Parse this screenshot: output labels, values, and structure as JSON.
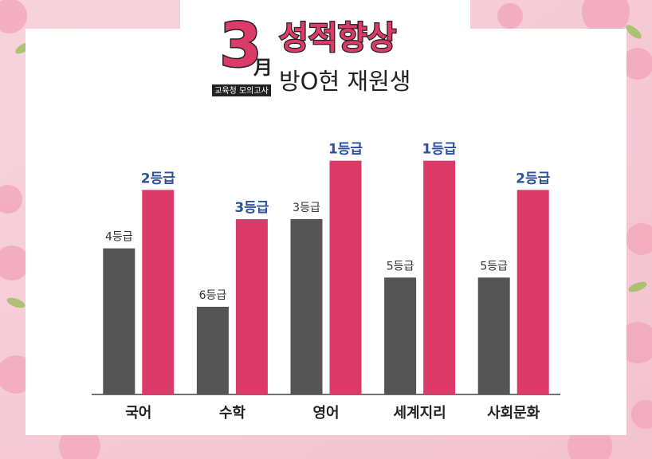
{
  "chart_data": {
    "type": "bar",
    "badge": {
      "number": "3",
      "month": "月",
      "caption": "교육청 모의고사"
    },
    "title": "성적향상",
    "subtitle": "방O현 재원생",
    "categories": [
      "국어",
      "수학",
      "영어",
      "세계지리",
      "사회문화"
    ],
    "ylim": [
      9,
      0
    ],
    "series": [
      {
        "color": "#555555",
        "values": [
          4,
          6,
          3,
          5,
          5
        ],
        "value_labels": [
          "4등급",
          "6등급",
          "3등급",
          "5등급",
          "5등급"
        ],
        "label_color": "#333333"
      },
      {
        "color": "#dc3a68",
        "values": [
          2,
          3,
          1,
          1,
          2
        ],
        "value_labels": [
          "2등급",
          "3등급",
          "1등급",
          "1등급",
          "2등급"
        ],
        "label_color": "#2c4f9e"
      }
    ]
  }
}
